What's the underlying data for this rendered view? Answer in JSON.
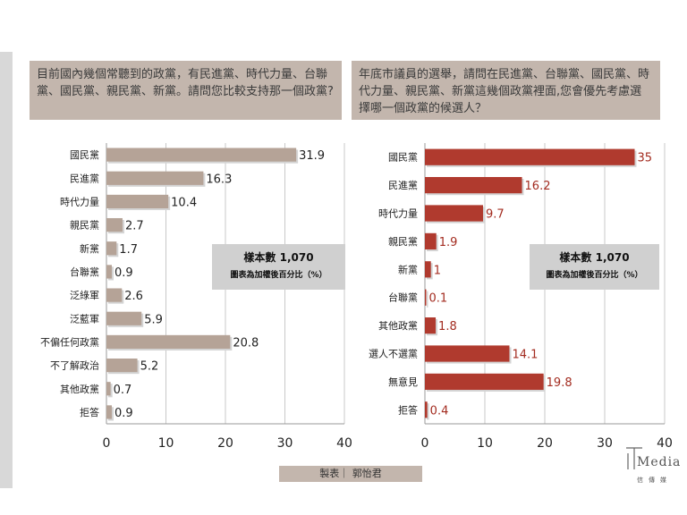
{
  "questions": {
    "left": "目前國內幾個常聽到的政黨，有民進黨、時代力量、台聯黨、國民黨、親民黨、新黨。請問您比較支持那一個政黨?",
    "right": "年底市議員的選舉，請問在民進黨、台聯黨、國民黨、時代力量、親民黨、新黨這幾個政黨裡面,您會優先考慮選擇哪一個政黨的候選人？"
  },
  "sample": {
    "left": {
      "n": "樣本數 1,070",
      "unit": "圖表為加權後百分比（%）"
    },
    "right": {
      "n": "樣本數 1,070",
      "unit": "圖表為加權後百分比（%）"
    }
  },
  "footer": {
    "credit": "製表｜ 郭怡君",
    "logo_main": "Media",
    "logo_sub": "信傳媒"
  },
  "colors": {
    "left_bar": "#b5a397",
    "right_bar": "#b03a2e",
    "right_label": "#a32c20"
  },
  "chart_data": [
    {
      "type": "bar",
      "orientation": "horizontal",
      "categories": [
        "國民黨",
        "民進黨",
        "時代力量",
        "親民黨",
        "新黨",
        "台聯黨",
        "泛綠軍",
        "泛藍軍",
        "不偏任何政黨",
        "不了解政治",
        "其他政黨",
        "拒答"
      ],
      "values": [
        31.9,
        16.3,
        10.4,
        2.7,
        1.7,
        0.9,
        2.6,
        5.9,
        20.8,
        5.2,
        0.7,
        0.9
      ],
      "labels": [
        "31.9",
        "16.3",
        "10.4",
        "2.7",
        "1.7",
        "0.9",
        "2.6",
        "5.9",
        "20.8",
        "5.2",
        "0.7",
        "0.9"
      ],
      "xlim": [
        0,
        40
      ],
      "xticks": [
        "0",
        "10",
        "20",
        "30",
        "40"
      ],
      "grid": true
    },
    {
      "type": "bar",
      "orientation": "horizontal",
      "categories": [
        "國民黨",
        "民進黨",
        "時代力量",
        "親民黨",
        "新黨",
        "台聯黨",
        "其他政黨",
        "選人不選黨",
        "無意見",
        "拒答"
      ],
      "values": [
        35,
        16.2,
        9.7,
        1.9,
        1,
        0.1,
        1.8,
        14.1,
        19.8,
        0.4
      ],
      "labels": [
        "35",
        "16.2",
        "9.7",
        "1.9",
        "1",
        "0.1",
        "1.8",
        "14.1",
        "19.8",
        "0.4"
      ],
      "xlim": [
        0,
        40
      ],
      "xticks": [
        "0",
        "10",
        "20",
        "30",
        "40"
      ],
      "grid": true
    }
  ]
}
